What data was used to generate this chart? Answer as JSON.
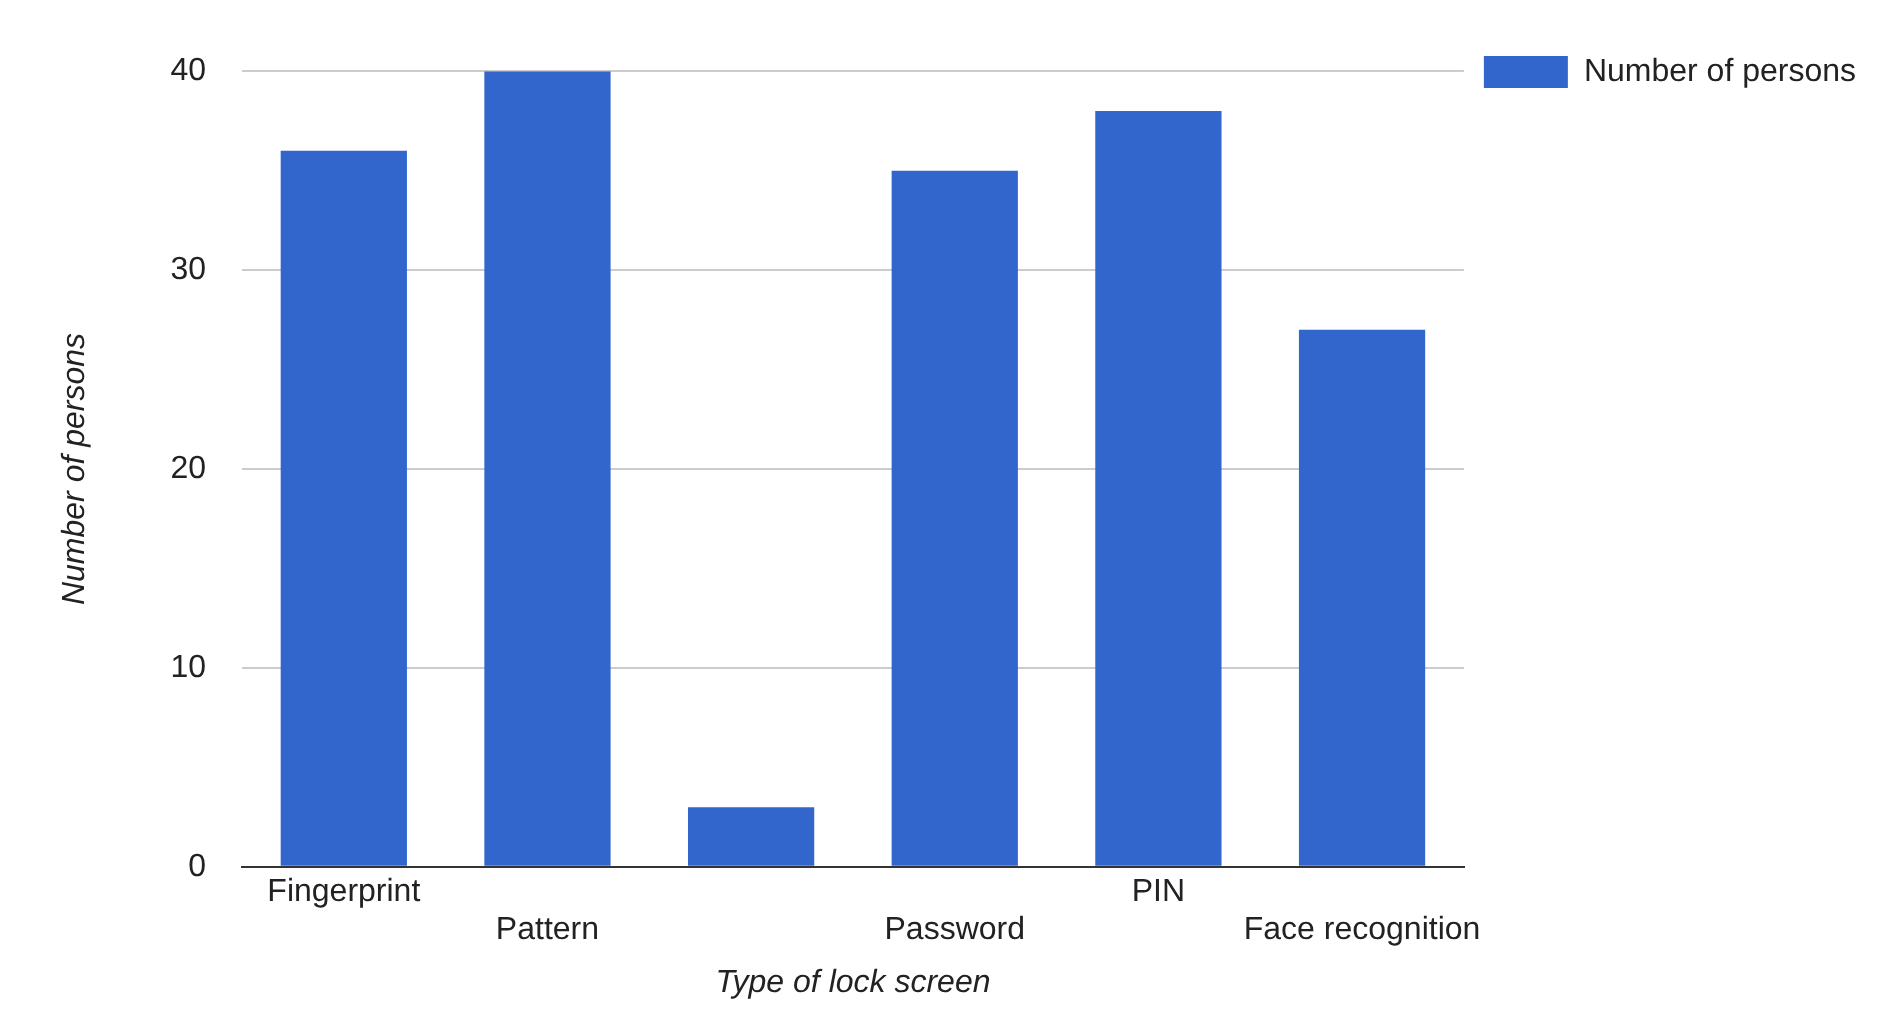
{
  "chart_data": {
    "type": "bar",
    "xlabel": "Type of lock screen",
    "ylabel": "Number of persons",
    "categories": [
      "Fingerprint",
      "Pattern",
      null,
      "Password",
      "PIN",
      "Face recognition"
    ],
    "series": [
      {
        "name": "Number of persons",
        "color": "#3366cc",
        "values": [
          36,
          40,
          3,
          35,
          38,
          27
        ]
      }
    ],
    "ylim": [
      0,
      40
    ],
    "yticks": [
      0,
      10,
      20,
      30,
      40
    ],
    "grid": "y",
    "legend": "top right"
  }
}
